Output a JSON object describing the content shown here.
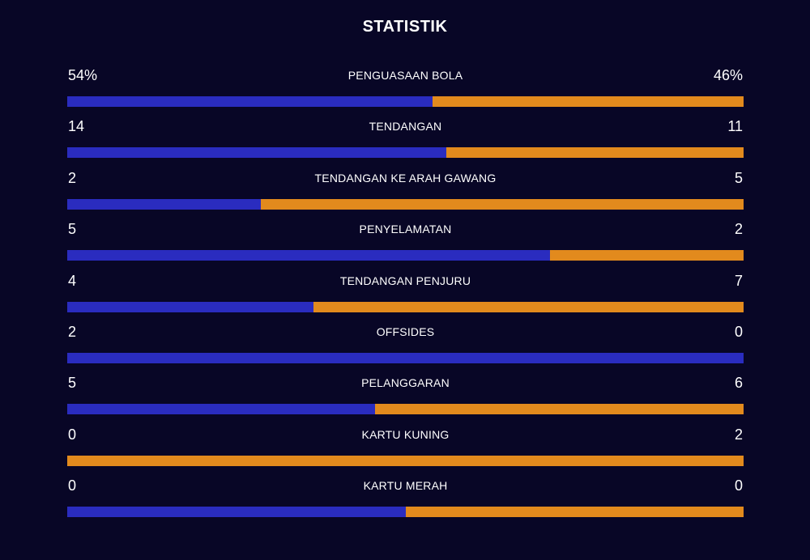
{
  "title": "STATISTIK",
  "colors": {
    "home": "#2a2cbf",
    "away": "#e28a1d",
    "background": "#080626"
  },
  "stats": [
    {
      "label": "PENGUASAAN BOLA",
      "home_display": "54%",
      "away_display": "46%",
      "home_share": 0.54
    },
    {
      "label": "TENDANGAN",
      "home_display": "14",
      "away_display": "11",
      "home_share": 0.56
    },
    {
      "label": "TENDANGAN KE ARAH GAWANG",
      "home_display": "2",
      "away_display": "5",
      "home_share": 0.285714
    },
    {
      "label": "PENYELAMATAN",
      "home_display": "5",
      "away_display": "2",
      "home_share": 0.714286
    },
    {
      "label": "TENDANGAN PENJURU",
      "home_display": "4",
      "away_display": "7",
      "home_share": 0.363636
    },
    {
      "label": "OFFSIDES",
      "home_display": "2",
      "away_display": "0",
      "home_share": 1.0
    },
    {
      "label": "PELANGGARAN",
      "home_display": "5",
      "away_display": "6",
      "home_share": 0.454545
    },
    {
      "label": "KARTU KUNING",
      "home_display": "0",
      "away_display": "2",
      "home_share": 0.0
    },
    {
      "label": "KARTU MERAH",
      "home_display": "0",
      "away_display": "0",
      "home_share": 0.5
    }
  ]
}
